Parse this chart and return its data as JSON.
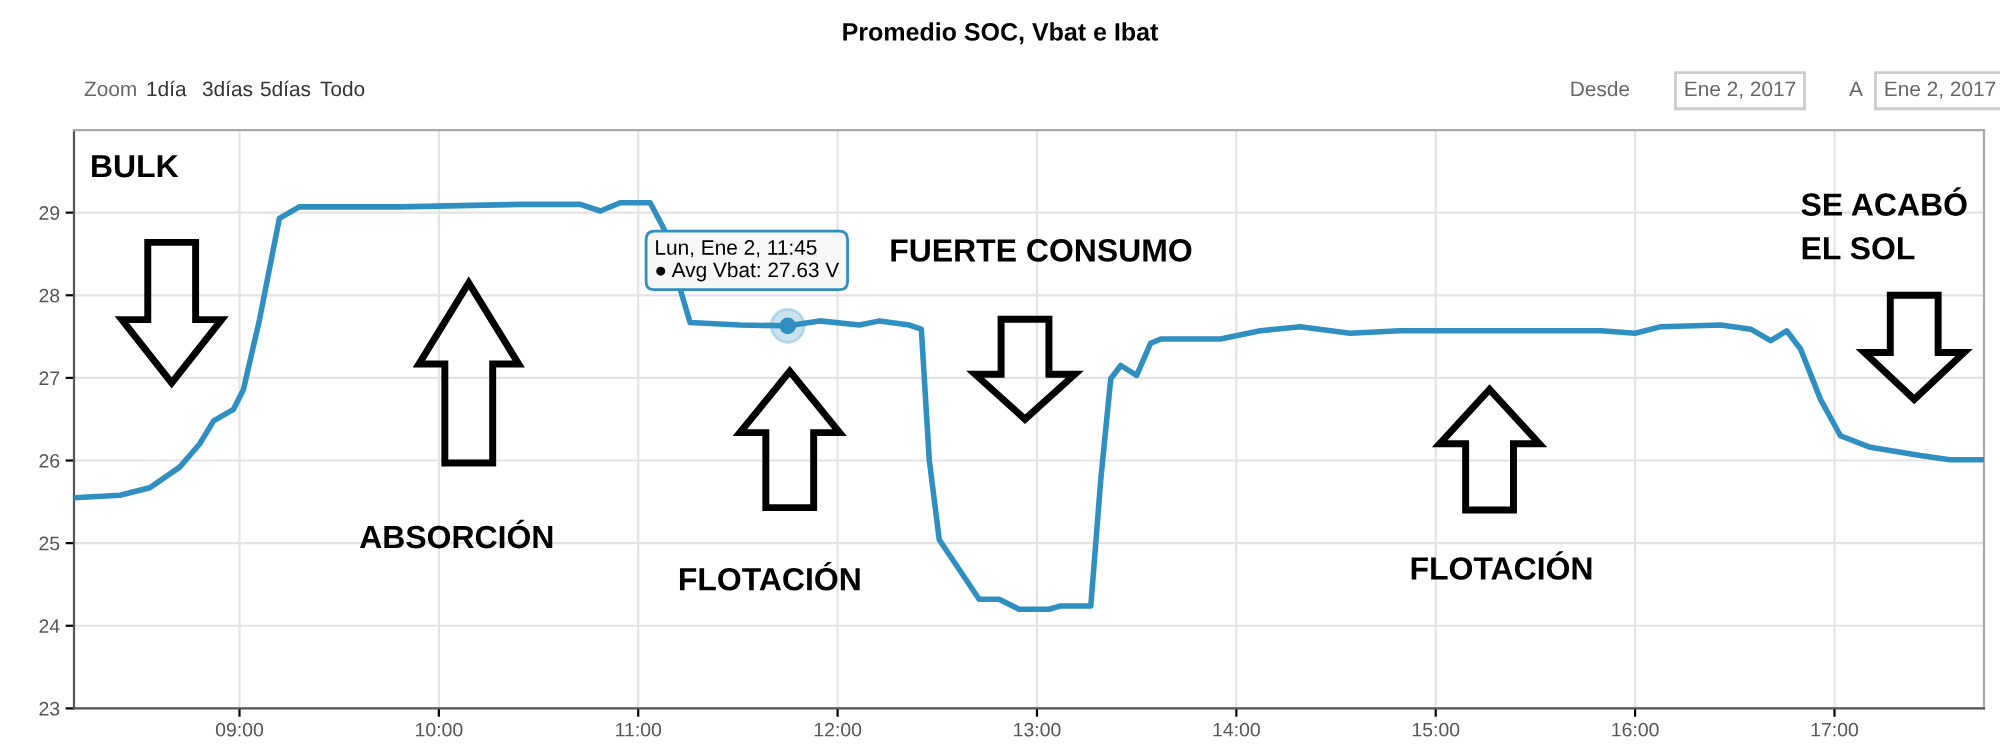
{
  "chart_data": {
    "type": "line",
    "title": "Promedio SOC, Vbat e Ibat",
    "x": [
      8.17,
      8.4,
      8.55,
      8.7,
      8.8,
      8.87,
      8.97,
      9.02,
      9.1,
      9.2,
      9.3,
      9.8,
      10.41,
      10.71,
      10.81,
      10.91,
      11.06,
      11.13,
      11.21,
      11.26,
      11.51,
      11.75,
      11.91,
      12.11,
      12.21,
      12.36,
      12.42,
      12.46,
      12.51,
      12.61,
      12.71,
      12.81,
      12.91,
      13.06,
      13.12,
      13.27,
      13.32,
      13.37,
      13.42,
      13.5,
      13.57,
      13.62,
      13.92,
      14.12,
      14.32,
      14.57,
      14.82,
      15.33,
      15.83,
      16.0,
      16.13,
      16.43,
      16.58,
      16.68,
      16.76,
      16.83,
      16.93,
      17.03,
      17.18,
      17.43,
      17.58,
      17.75
    ],
    "series": [
      {
        "color": "#2f8fc1",
        "values": [
          25.55,
          25.58,
          25.67,
          25.92,
          26.2,
          26.48,
          26.62,
          26.86,
          27.7,
          28.93,
          29.07,
          29.07,
          29.1,
          29.1,
          29.02,
          29.12,
          29.12,
          28.8,
          28.08,
          27.67,
          27.64,
          27.63,
          27.69,
          27.64,
          27.69,
          27.64,
          27.59,
          26.0,
          25.04,
          24.68,
          24.32,
          24.32,
          24.2,
          24.2,
          24.24,
          24.24,
          25.77,
          26.99,
          27.15,
          27.03,
          27.42,
          27.47,
          27.47,
          27.57,
          27.62,
          27.54,
          27.57,
          27.57,
          27.57,
          27.54,
          27.62,
          27.64,
          27.59,
          27.45,
          27.57,
          27.35,
          26.74,
          26.3,
          26.16,
          26.06,
          26.01,
          26.01
        ]
      }
    ],
    "xlim": [
      8.17,
      17.75
    ],
    "xticks": [
      {
        "value": 9,
        "label": "09:00"
      },
      {
        "value": 10,
        "label": "10:00"
      },
      {
        "value": 11,
        "label": "11:00"
      },
      {
        "value": 12,
        "label": "12:00"
      },
      {
        "value": 13,
        "label": "13:00"
      },
      {
        "value": 14,
        "label": "14:00"
      },
      {
        "value": 15,
        "label": "15:00"
      },
      {
        "value": 16,
        "label": "16:00"
      },
      {
        "value": 17,
        "label": "17:00"
      }
    ],
    "ylim": [
      23,
      30
    ],
    "yticks": [
      23,
      24,
      25,
      26,
      27,
      28,
      29
    ],
    "grid": true,
    "marker": "none",
    "line_style": "solid",
    "annotations": [
      "BULK",
      "ABSORCIÓN",
      "FLOTACIÓN",
      "FUERTE CONSUMO",
      "FLOTACIÓN",
      "SE ACABÓ\nEL SOL",
      {
        "text": "Lun, Ene 2, 11:45\n● Avg Vbat: 27.63 V",
        "x": 11.75,
        "y": 27.63
      },
      "Zoom",
      "1día",
      "3días",
      "5días",
      "Todo",
      "Desde",
      "Ene 2, 2017",
      "A",
      "Ene 2, 2017"
    ]
  }
}
